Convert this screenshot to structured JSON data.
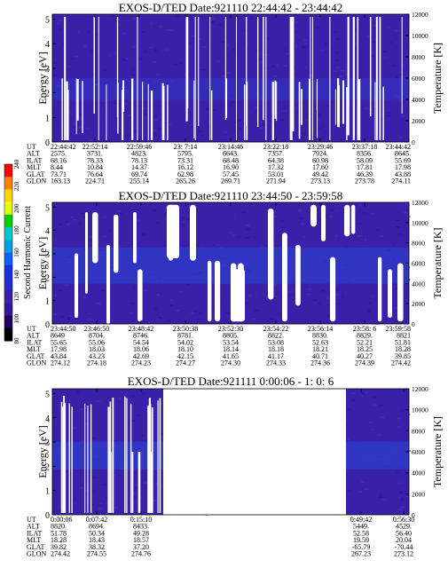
{
  "colors": {
    "background_plasma": "#3a1fa8",
    "background_dark": "#2e1690",
    "enhanced_blue": "#2a44d6",
    "gap_white": "#ffffff"
  },
  "colorbar": {
    "label": "Second Harmonic Current",
    "ticks": [
      "240",
      "220",
      "200",
      "180",
      "160",
      "140",
      "120",
      "100",
      "80"
    ],
    "colors": [
      "#ff0000",
      "#ff8000",
      "#ffd700",
      "#e8ff00",
      "#00d000",
      "#00c8c8",
      "#00a0e0",
      "#1060ff",
      "#1830e0",
      "#2a28c8",
      "#3a1fa8",
      "#32199a",
      "#200060",
      "#000000"
    ]
  },
  "panels": [
    {
      "title": "EXOS-D/TED   Date:921110  22:44:42 - 23:44:42",
      "ylabel": "Energy [eV]",
      "y2label": "Temperature [K]",
      "yticks": [
        "0",
        "1",
        "2",
        "3",
        "4",
        "5"
      ],
      "y2ticks": [
        "0",
        "2000",
        "4000",
        "6000",
        "8000",
        "10000",
        "12000"
      ],
      "rows": [
        {
          "label": "UT",
          "values": [
            "22:44:42",
            "22:52:14",
            "22:59:46",
            "23: 7:14",
            "23:14:46",
            "23:22:18",
            "23:29:46",
            "23:37:18",
            "23:44:42"
          ]
        },
        {
          "label": "ALT",
          "values": [
            "2575.",
            "3731.",
            "4823.",
            "5795.",
            "6643.",
            "7357.",
            "7924.",
            "8356.",
            "8645."
          ]
        },
        {
          "label": "ILAT",
          "values": [
            "68.16",
            "78.33",
            "78.13",
            "73.31",
            "68.48",
            "64.38",
            "60.98",
            "58.09",
            "55.69"
          ]
        },
        {
          "label": "MLT",
          "values": [
            "8.44",
            "10.84",
            "14.37",
            "16.12",
            "16.90",
            "17.32",
            "17.60",
            "17.81",
            "17.98"
          ]
        },
        {
          "label": "GLAT",
          "values": [
            "73.71",
            "76.64",
            "69.74",
            "62.98",
            "57.45",
            "53.01",
            "49.42",
            "46.39",
            "43.88"
          ]
        },
        {
          "label": "GLON",
          "values": [
            "163.13",
            "224.71",
            "255.14",
            "265.26",
            "269.71",
            "271.94",
            "273.13",
            "273.78",
            "274.11"
          ]
        }
      ]
    },
    {
      "title": "EXOS-D/TED   Date:921110  23:44:50 - 23:59:58",
      "ylabel": "Energy [eV]",
      "y2label": "Temperature [K]",
      "yticks": [
        "0",
        "1",
        "2",
        "3",
        "4",
        "5"
      ],
      "y2ticks": [
        "0",
        "2000",
        "4000",
        "6000",
        "8000",
        "10000",
        "12000"
      ],
      "rows": [
        {
          "label": "UT",
          "values": [
            "23:44:50",
            "23:46:50",
            "23:48:42",
            "23:50:38",
            "23:52:30",
            "23:54:22",
            "23:56:14",
            "23:58: 6",
            "23:59:58"
          ]
        },
        {
          "label": "ALT",
          "values": [
            "8649",
            "8704.",
            "8746.",
            "8781.",
            "8805.",
            "8822.",
            "8830.",
            "8829.",
            "8821"
          ]
        },
        {
          "label": "ILAT",
          "values": [
            "55.65",
            "55.06",
            "54.54",
            "54.02",
            "53.54",
            "53.08",
            "52.63",
            "52.21",
            "51.81"
          ]
        },
        {
          "label": "MLT",
          "values": [
            "17.98",
            "18.03",
            "18.06",
            "18.10",
            "18.14",
            "18.18",
            "18.21",
            "18.25",
            "18.28"
          ]
        },
        {
          "label": "GLAT",
          "values": [
            "43.84",
            "43.23",
            "42.69",
            "42.15",
            "41.65",
            "41.17",
            "40.71",
            "40.27",
            "39.85"
          ]
        },
        {
          "label": "GLON",
          "values": [
            "274.12",
            "274.18",
            "274.23",
            "274.27",
            "274.30",
            "274.33",
            "274.36",
            "274.39",
            "274.42"
          ]
        }
      ]
    },
    {
      "title": "EXOS-D/TED   Date:921111  0:00:06 - 1: 0: 6",
      "ylabel": "Energy [eV]",
      "y2label": "Temperature [K]",
      "yticks": [
        "0",
        "1",
        "2",
        "3",
        "4",
        "5"
      ],
      "y2ticks": [
        "0",
        "2000",
        "4000",
        "6000",
        "8000",
        "10000",
        "12000"
      ],
      "rows": [
        {
          "label": "UT",
          "values": [
            "0:00:06",
            "0:07:42",
            "0:15:10",
            "0:49:42",
            "0:56:30"
          ]
        },
        {
          "label": "ALT",
          "values": [
            "8820.",
            "8694.",
            "8433.",
            "5449.",
            "4529."
          ]
        },
        {
          "label": "ILAT",
          "values": [
            "51.78",
            "50.34",
            "49.28",
            "52.58",
            "56.40"
          ]
        },
        {
          "label": "MLT",
          "values": [
            "18.28",
            "18.43",
            "18.57",
            "19.59",
            "20.04"
          ]
        },
        {
          "label": "GLAT",
          "values": [
            "39.82",
            "38.32",
            "37.20",
            "-65.79",
            "-70.44"
          ]
        },
        {
          "label": "GLON",
          "values": [
            "274.42",
            "274.55",
            "274.76",
            "267.23",
            "273.12"
          ]
        }
      ]
    }
  ],
  "chart_data": [
    {
      "type": "heatmap",
      "title": "EXOS-D/TED   Date:921110  22:44:42 - 23:44:42",
      "ylabel": "Energy [eV]",
      "y2label": "Temperature [K]",
      "ylim": [
        0,
        5.2
      ],
      "y2lim": [
        0,
        12000
      ],
      "x_ticks": [
        "22:44:42",
        "22:52:14",
        "22:59:46",
        "23: 7:14",
        "23:14:46",
        "23:22:18",
        "23:29:46",
        "23:37:18",
        "23:44:42"
      ],
      "colorscale": "Second Harmonic Current 80-240"
    },
    {
      "type": "heatmap",
      "title": "EXOS-D/TED   Date:921110  23:44:50 - 23:59:58",
      "ylabel": "Energy [eV]",
      "y2label": "Temperature [K]",
      "ylim": [
        0,
        5.2
      ],
      "y2lim": [
        0,
        12000
      ],
      "x_ticks": [
        "23:44:50",
        "23:46:50",
        "23:48:42",
        "23:50:38",
        "23:52:30",
        "23:54:22",
        "23:56:14",
        "23:58: 6",
        "23:59:58"
      ],
      "colorscale": "Second Harmonic Current 80-240"
    },
    {
      "type": "heatmap",
      "title": "EXOS-D/TED   Date:921111  0:00:06 - 1: 0: 6",
      "ylabel": "Energy [eV]",
      "y2label": "Temperature [K]",
      "ylim": [
        0,
        5.2
      ],
      "y2lim": [
        0,
        12000
      ],
      "x_ticks": [
        "0:00:06",
        "0:07:42",
        "0:15:10",
        "0:49:42",
        "0:56:30"
      ],
      "colorscale": "Second Harmonic Current 80-240"
    }
  ]
}
